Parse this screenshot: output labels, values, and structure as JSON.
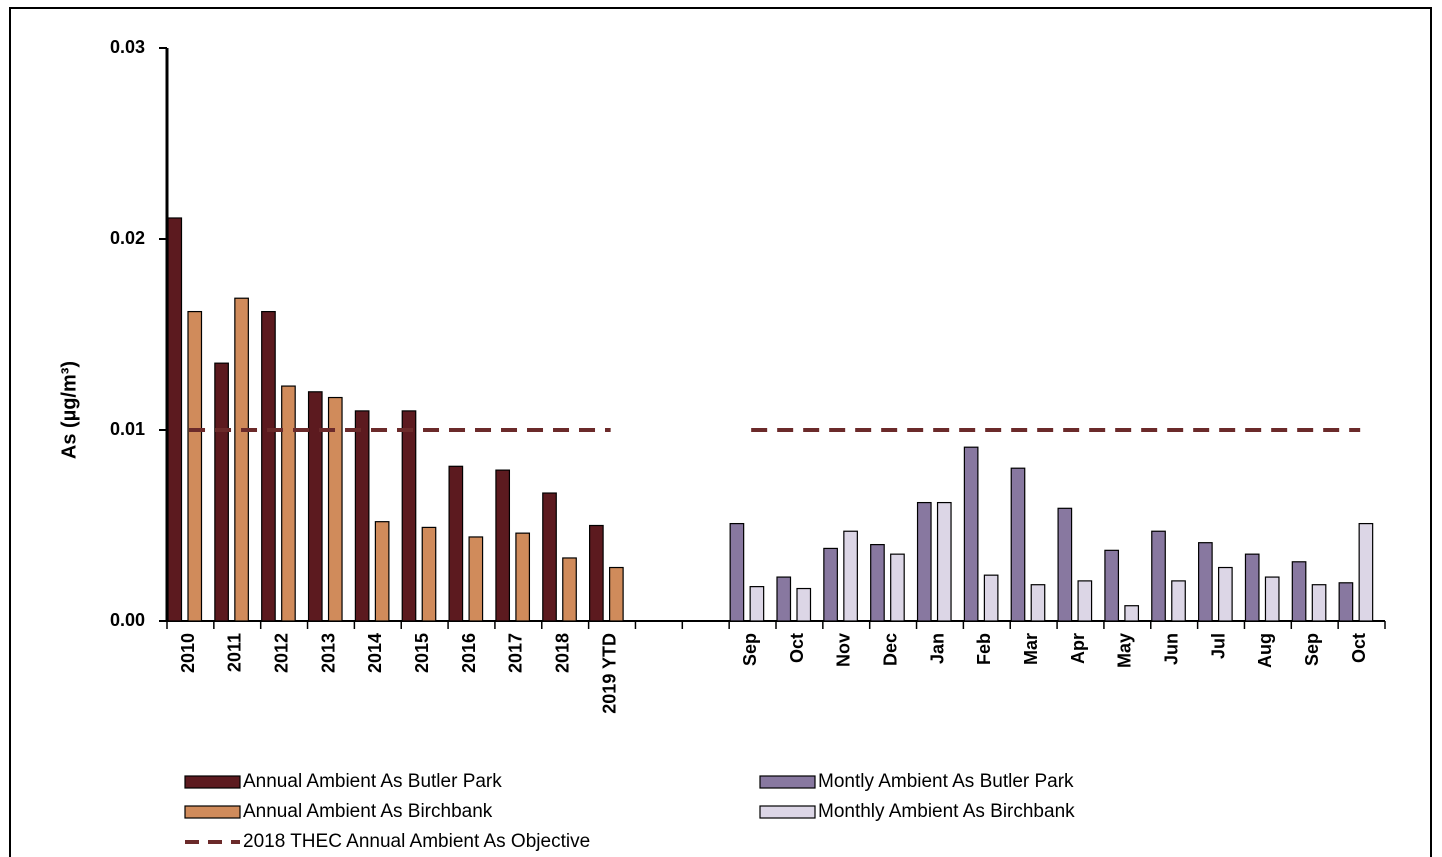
{
  "chart_data": {
    "type": "bar",
    "ylabel": "As  (µg/m³)",
    "categories": [
      "2010",
      "2011",
      "2012",
      "2013",
      "2014",
      "2015",
      "2016",
      "2017",
      "2018",
      "2019 YTD",
      null,
      null,
      "Sep",
      "Oct",
      "Nov",
      "Dec",
      "Jan",
      "Feb",
      "Mar",
      "Apr",
      "May",
      "Jun",
      "Jul",
      "Aug",
      "Sep",
      "Oct"
    ],
    "ylim": [
      0,
      0.03
    ],
    "yticks": [
      {
        "value": 0,
        "label": "0.00"
      },
      0.01,
      0.02,
      0.03
    ],
    "series": [
      {
        "name": "Annual Ambient As Butler Park",
        "color": "#5c1a1f",
        "values": [
          0.0211,
          0.0135,
          0.0162,
          0.012,
          0.011,
          0.011,
          0.0081,
          0.0079,
          0.0067,
          0.005,
          null,
          null,
          null,
          null,
          null,
          null,
          null,
          null,
          null,
          null,
          null,
          null,
          null,
          null,
          null,
          null
        ]
      },
      {
        "name": "Annual Ambient As Birchbank",
        "color": "#d08b5b",
        "values": [
          0.0162,
          0.0169,
          0.0123,
          0.0117,
          0.0052,
          0.0049,
          0.0044,
          0.0046,
          0.0033,
          0.0028,
          null,
          null,
          null,
          null,
          null,
          null,
          null,
          null,
          null,
          null,
          null,
          null,
          null,
          null,
          null,
          null
        ]
      },
      {
        "name": "Montly Ambient As Butler Park",
        "color": "#8878a0",
        "values": [
          null,
          null,
          null,
          null,
          null,
          null,
          null,
          null,
          null,
          null,
          null,
          null,
          0.0051,
          0.0023,
          0.0038,
          0.004,
          0.0062,
          0.0091,
          0.008,
          0.0059,
          0.0037,
          0.0047,
          0.0041,
          0.0035,
          0.0031,
          0.002
        ]
      },
      {
        "name": "Monthly Ambient As Birchbank",
        "color": "#dcd6e6",
        "values": [
          null,
          null,
          null,
          null,
          null,
          null,
          null,
          null,
          null,
          null,
          null,
          null,
          0.0018,
          0.0017,
          0.0047,
          0.0035,
          0.0062,
          0.0024,
          0.0019,
          0.0021,
          0.0008,
          0.0021,
          0.0028,
          0.0023,
          0.0019,
          0.0051
        ]
      },
      {
        "name": "2018 THEC Annual Ambient As Objective",
        "color": "#6b2a2a",
        "type": "line",
        "linestyle": "dashed",
        "values": [
          0.01,
          0.01,
          0.01,
          0.01,
          0.01,
          0.01,
          0.01,
          0.01,
          0.01,
          0.01,
          null,
          null,
          0.01,
          0.01,
          0.01,
          0.01,
          0.01,
          0.01,
          0.01,
          0.01,
          0.01,
          0.01,
          0.01,
          0.01,
          0.01,
          0.01
        ]
      }
    ]
  }
}
